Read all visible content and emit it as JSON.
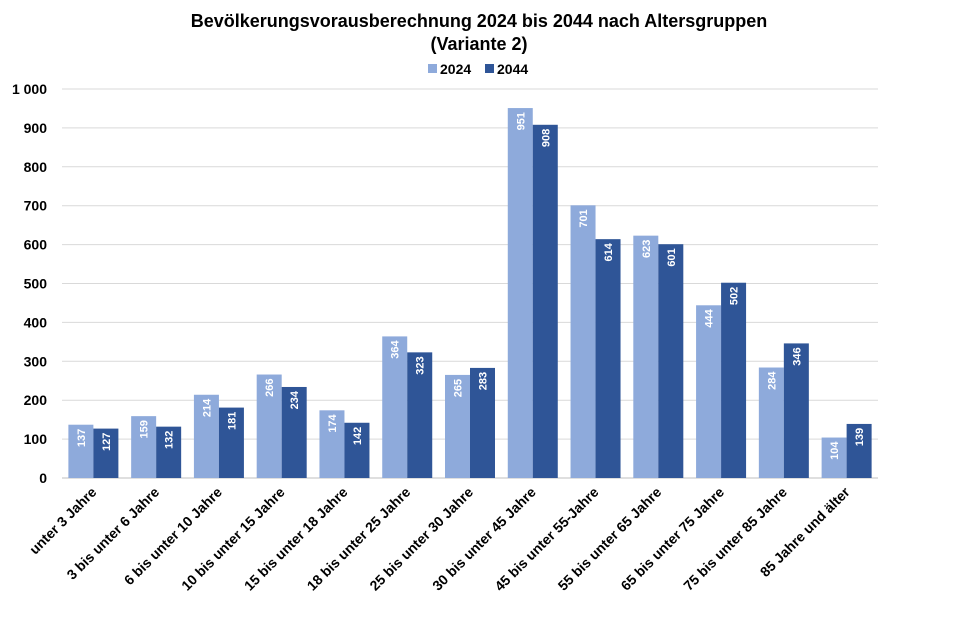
{
  "chart_data": {
    "type": "bar",
    "title_lines": [
      "Bevölkerungsvorausberechnung 2024 bis 2044 nach Altersgruppen",
      "(Variante 2)"
    ],
    "categories": [
      "unter 3 Jahre",
      "3 bis unter 6 Jahre",
      "6 bis unter 10 Jahre",
      "10 bis unter 15 Jahre",
      "15 bis unter 18 Jahre",
      "18 bis unter 25 Jahre",
      "25 bis unter 30 Jahre",
      "30 bis unter 45 Jahre",
      "45 bis unter 55-Jahre",
      "55 bis unter 65 Jahre",
      "65 bis unter 75 Jahre",
      "75 bis unter 85 Jahre",
      "85 Jahre und älter"
    ],
    "series": [
      {
        "name": "2024",
        "color": "#8eaadb",
        "values": [
          137,
          159,
          214,
          266,
          174,
          364,
          265,
          951,
          701,
          623,
          444,
          284,
          104
        ]
      },
      {
        "name": "2044",
        "color": "#2f5597",
        "values": [
          127,
          132,
          181,
          234,
          142,
          323,
          283,
          908,
          614,
          601,
          502,
          346,
          139
        ]
      }
    ],
    "ylim": [
      0,
      1000
    ],
    "yticks": [
      0,
      100,
      200,
      300,
      400,
      500,
      600,
      700,
      800,
      900,
      1000
    ],
    "ytick_labels": [
      "0",
      "100",
      "200",
      "300",
      "400",
      "500",
      "600",
      "700",
      "800",
      "900",
      "1 000"
    ],
    "grid": true,
    "legend_position": "top-center",
    "data_labels": true,
    "gridline_color": "#d9d9d9"
  }
}
